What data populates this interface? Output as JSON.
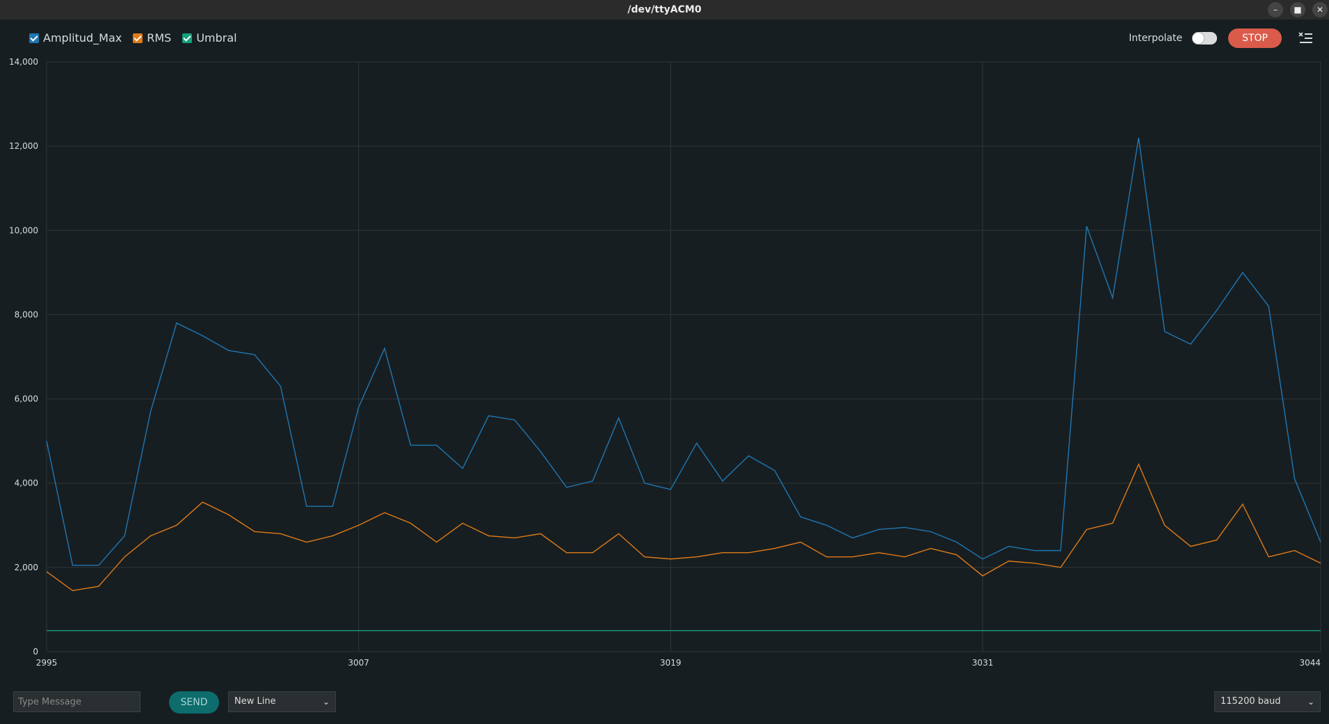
{
  "window": {
    "title": "/dev/ttyACM0"
  },
  "legend": [
    {
      "label": "Amplitud_Max",
      "color": "#1f77b4",
      "checked": true
    },
    {
      "label": "RMS",
      "color": "#e07b17",
      "checked": true
    },
    {
      "label": "Umbral",
      "color": "#16a07c",
      "checked": true
    }
  ],
  "toolbar": {
    "interpolate_label": "Interpolate",
    "interpolate_on": false,
    "stop_label": "STOP"
  },
  "bottom": {
    "message_placeholder": "Type Message",
    "send_label": "SEND",
    "line_ending": "New Line",
    "baud": "115200 baud"
  },
  "chart_data": {
    "type": "line",
    "title": "",
    "xlabel": "",
    "ylabel": "",
    "xlim": [
      2995,
      3044
    ],
    "ylim": [
      0,
      14000
    ],
    "grid": true,
    "legend_position": "top-left",
    "x_ticks": [
      "2995",
      "3007",
      "3019",
      "3031",
      "3044"
    ],
    "y_ticks": [
      "0",
      "2,000",
      "4,000",
      "6,000",
      "8,000",
      "10,000",
      "12,000",
      "14,000"
    ],
    "x": [
      2995,
      2996,
      2997,
      2998,
      2999,
      3000,
      3001,
      3002,
      3003,
      3004,
      3005,
      3006,
      3007,
      3008,
      3009,
      3010,
      3011,
      3012,
      3013,
      3014,
      3015,
      3016,
      3017,
      3018,
      3019,
      3020,
      3021,
      3022,
      3023,
      3024,
      3025,
      3026,
      3027,
      3028,
      3029,
      3030,
      3031,
      3032,
      3033,
      3034,
      3035,
      3036,
      3037,
      3038,
      3039,
      3040,
      3041,
      3042,
      3043,
      3044
    ],
    "series": [
      {
        "name": "Amplitud_Max",
        "color": "#1f77b4",
        "values": [
          5000,
          2050,
          2050,
          2750,
          5700,
          7800,
          7500,
          7150,
          7050,
          6300,
          3450,
          3450,
          5800,
          7200,
          4900,
          4900,
          4350,
          5600,
          5500,
          4750,
          3900,
          4050,
          5550,
          4000,
          3850,
          4950,
          4050,
          4650,
          4300,
          3200,
          3000,
          2700,
          2900,
          2950,
          2850,
          2600,
          2200,
          2500,
          2400,
          2400,
          10100,
          8400,
          12200,
          7600,
          7300,
          8100,
          9000,
          8200,
          4100,
          2600
        ]
      },
      {
        "name": "RMS",
        "color": "#e07b17",
        "values": [
          1900,
          1450,
          1550,
          2250,
          2750,
          3000,
          3550,
          3250,
          2850,
          2800,
          2600,
          2750,
          3000,
          3300,
          3050,
          2600,
          3050,
          2750,
          2700,
          2800,
          2350,
          2350,
          2800,
          2250,
          2200,
          2250,
          2350,
          2350,
          2450,
          2600,
          2250,
          2250,
          2350,
          2250,
          2450,
          2300,
          1800,
          2150,
          2100,
          2000,
          2900,
          3050,
          4450,
          3000,
          2500,
          2650,
          3500,
          2250,
          2400,
          2100
        ]
      },
      {
        "name": "Umbral",
        "color": "#16a07c",
        "values": [
          500,
          500,
          500,
          500,
          500,
          500,
          500,
          500,
          500,
          500,
          500,
          500,
          500,
          500,
          500,
          500,
          500,
          500,
          500,
          500,
          500,
          500,
          500,
          500,
          500,
          500,
          500,
          500,
          500,
          500,
          500,
          500,
          500,
          500,
          500,
          500,
          500,
          500,
          500,
          500,
          500,
          500,
          500,
          500,
          500,
          500,
          500,
          500,
          500,
          500
        ]
      }
    ]
  }
}
